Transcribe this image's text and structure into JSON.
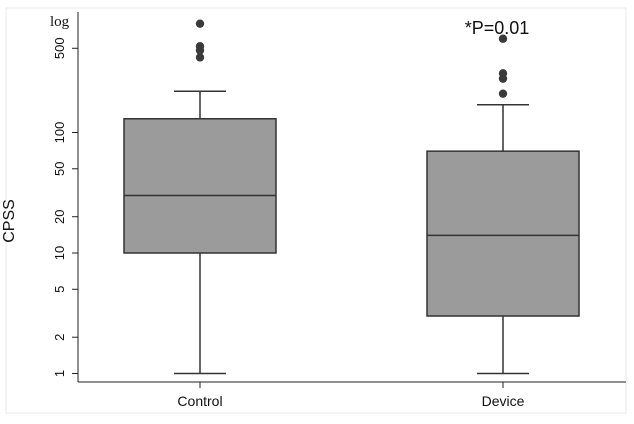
{
  "chart_data": {
    "type": "box",
    "ylabel": "CPSS",
    "scale_label": "log",
    "y_scale": "log",
    "ylim": [
      0.85,
      1000
    ],
    "ytick_values": [
      1,
      2,
      5,
      10,
      20,
      50,
      100,
      500
    ],
    "ytick_labels": [
      "1",
      "2",
      "5",
      "10",
      "20",
      "50",
      "100",
      "500"
    ],
    "annotation": "*P=0.01",
    "grid": false,
    "colors": {
      "box_fill": "#9b9b9b",
      "outline": "#333333",
      "background": "#ffffff",
      "frame": "#e8e8e8"
    },
    "groups": [
      {
        "category": "Control",
        "whisker_low": 1,
        "q1": 10,
        "median": 30,
        "q3": 130,
        "whisker_high": 220,
        "outliers": [
          420,
          480,
          520,
          800
        ]
      },
      {
        "category": "Device",
        "whisker_low": 1,
        "q1": 3,
        "median": 14,
        "q3": 70,
        "whisker_high": 170,
        "outliers": [
          210,
          280,
          310,
          600
        ]
      }
    ]
  }
}
